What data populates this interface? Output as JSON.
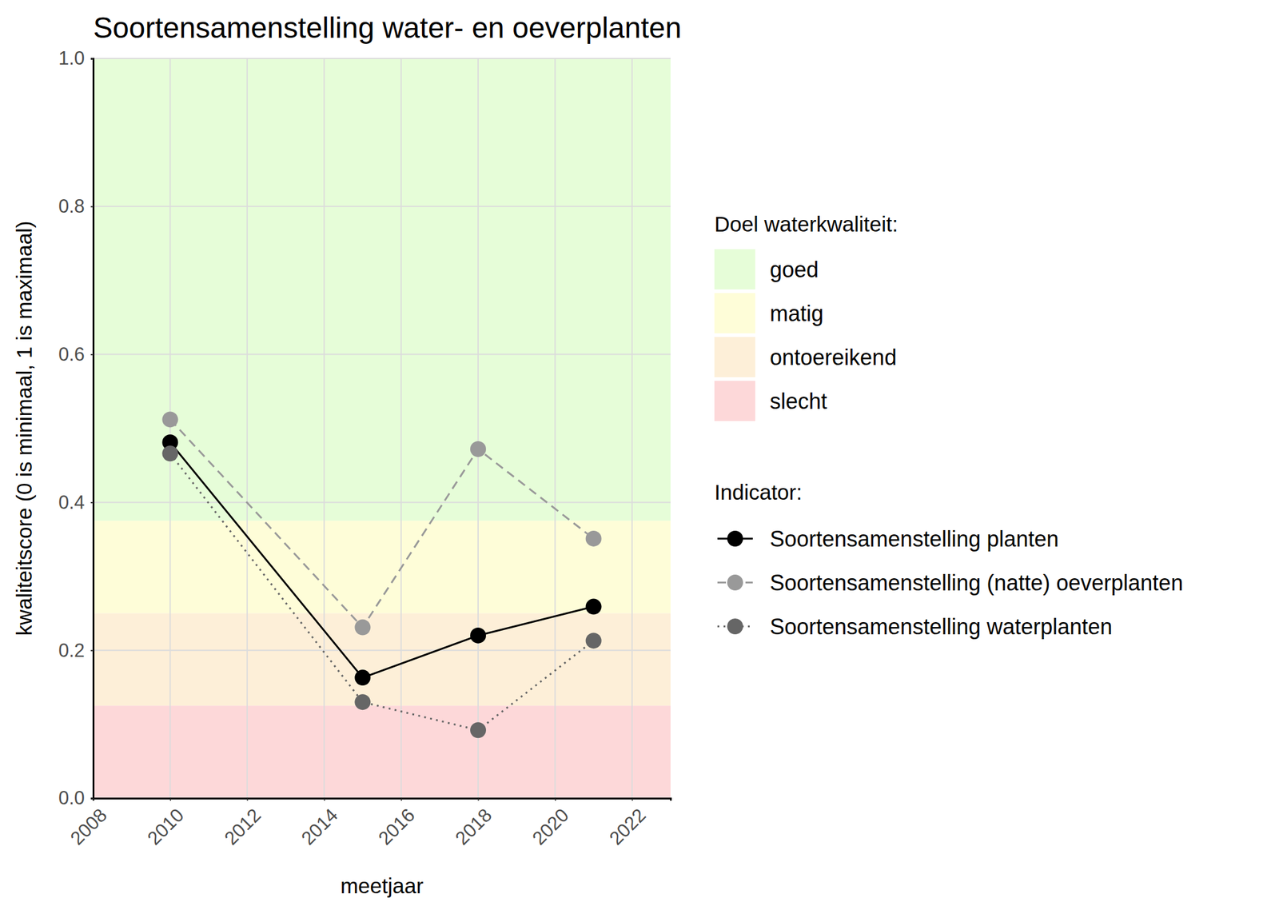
{
  "chart_data": {
    "type": "line",
    "title": "Soortensamenstelling water- en oeverplanten",
    "x_label": "meetjaar",
    "y_label": "kwaliteitscore (0 is minimaal, 1 is maximaal)",
    "x": [
      2010,
      2015,
      2018,
      2021
    ],
    "xlim": [
      2008,
      2023
    ],
    "xticks": [
      2008,
      2010,
      2012,
      2014,
      2016,
      2018,
      2020,
      2022
    ],
    "ylim": [
      0,
      1
    ],
    "yticks": [
      {
        "value": 0,
        "label": "0.0"
      },
      0.2,
      0.4,
      0.6,
      0.8,
      {
        "value": 1,
        "label": "1.0"
      }
    ],
    "grid": true,
    "legend": "right",
    "band_legend_title": "Doel waterkwaliteit:",
    "bands": [
      {
        "name": "goed",
        "from": 0.375,
        "to": 1,
        "color": "#e6fdd8"
      },
      {
        "name": "matig",
        "from": 0.25,
        "to": 0.375,
        "color": "#fefdd8"
      },
      {
        "name": "ontoereikend",
        "from": 0.125,
        "to": 0.25,
        "color": "#fdefd8"
      },
      {
        "name": "slecht",
        "from": 0,
        "to": 0.125,
        "color": "#fdd8d9"
      }
    ],
    "legend_title": "Indicator:",
    "series": [
      {
        "name": "Soortensamenstelling planten",
        "color": "#000000",
        "marker": "circle",
        "line_style": "solid",
        "values": [
          0.481,
          0.163,
          0.22,
          0.259
        ]
      },
      {
        "name": "Soortensamenstelling (natte) oeverplanten",
        "color": "#999999",
        "marker": "circle",
        "line_style": "dashed",
        "values": [
          0.512,
          0.231,
          0.472,
          0.351
        ]
      },
      {
        "name": "Soortensamenstelling waterplanten",
        "color": "#666666",
        "marker": "circle",
        "line_style": "dotted",
        "values": [
          0.466,
          0.13,
          0.092,
          0.213
        ]
      }
    ]
  }
}
